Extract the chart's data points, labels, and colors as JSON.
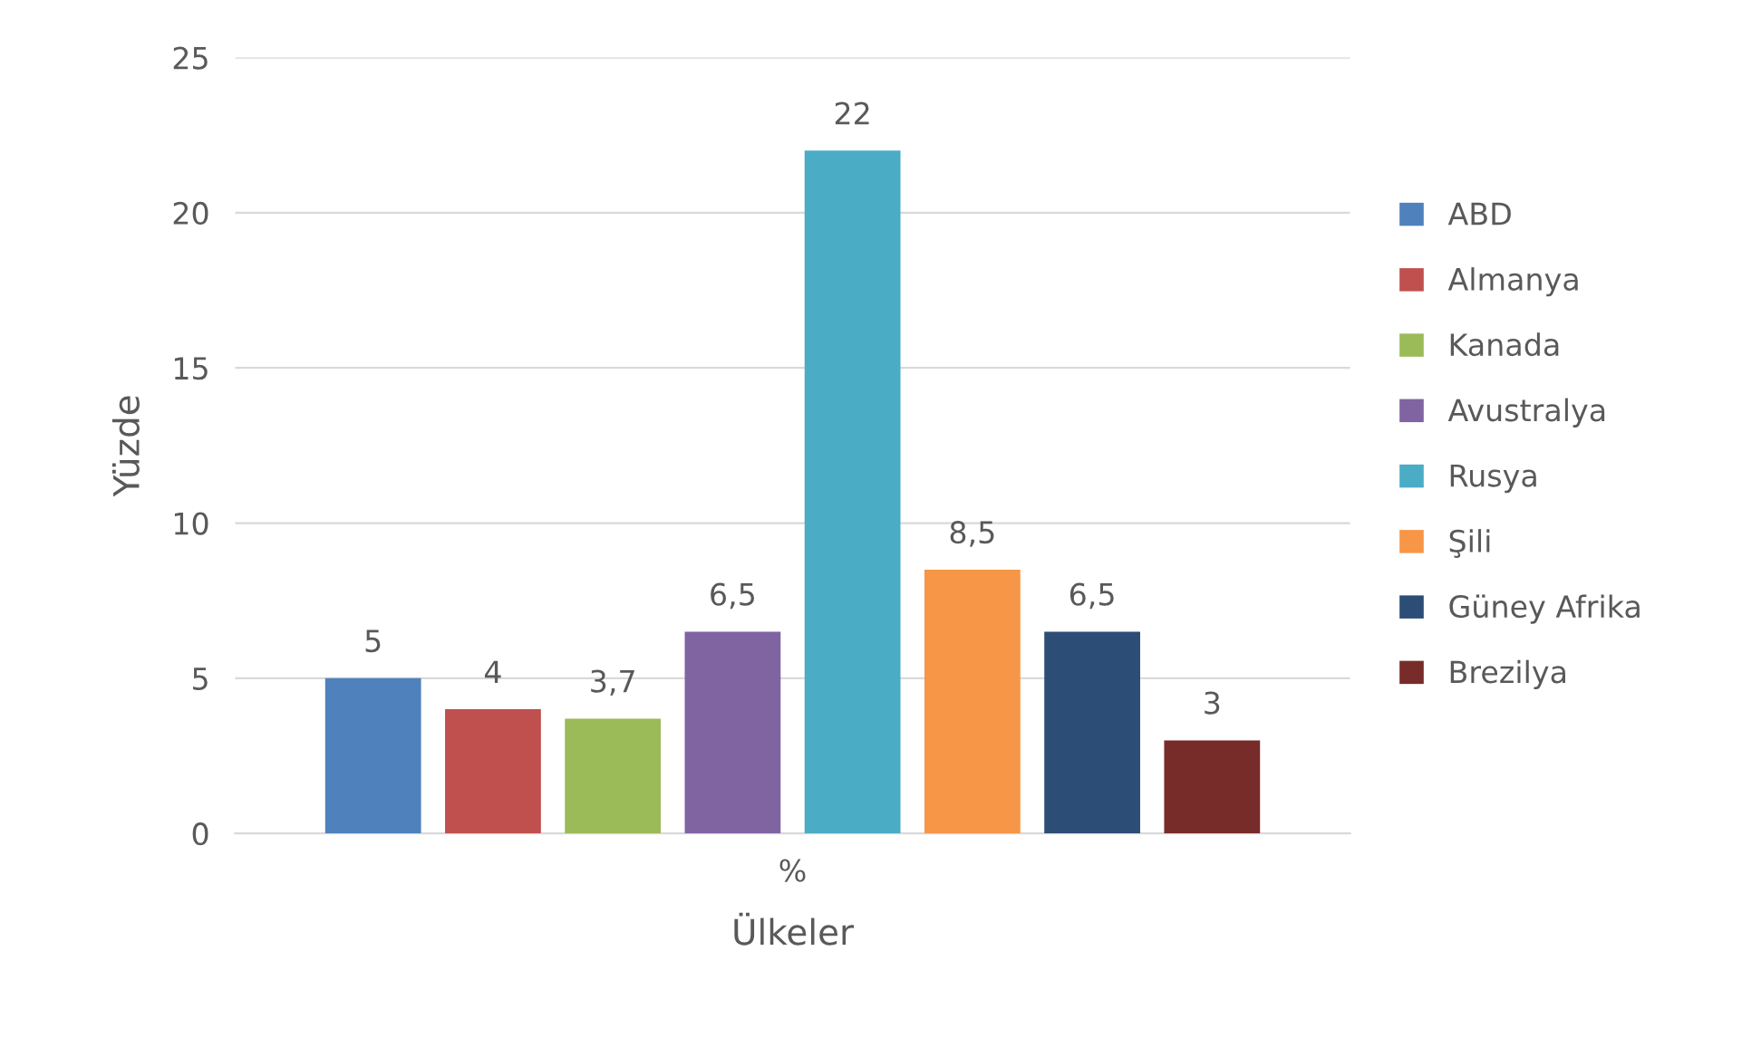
{
  "chart_data": {
    "type": "bar",
    "xlabel": "Ülkeler",
    "ylabel": "Yüzde",
    "categories": [
      "%"
    ],
    "series": [
      {
        "name": "ABD",
        "color": "#4f81bd",
        "values": [
          5
        ],
        "value_labels": [
          "5"
        ]
      },
      {
        "name": "Almanya",
        "color": "#c0504d",
        "values": [
          4
        ],
        "value_labels": [
          "4"
        ]
      },
      {
        "name": "Kanada",
        "color": "#9bbb59",
        "values": [
          3.7
        ],
        "value_labels": [
          "3,7"
        ]
      },
      {
        "name": "Avustralya",
        "color": "#8064a2",
        "values": [
          6.5
        ],
        "value_labels": [
          "6,5"
        ]
      },
      {
        "name": "Rusya",
        "color": "#4bacc6",
        "values": [
          22
        ],
        "value_labels": [
          "22"
        ]
      },
      {
        "name": "Şili",
        "color": "#f79646",
        "values": [
          8.5
        ],
        "value_labels": [
          "8,5"
        ]
      },
      {
        "name": "Güney Afrika",
        "color": "#2c4d75",
        "values": [
          6.5
        ],
        "value_labels": [
          "6,5"
        ]
      },
      {
        "name": "Brezilya",
        "color": "#772c2a",
        "values": [
          3
        ],
        "value_labels": [
          "3"
        ]
      }
    ],
    "ylim": [
      0,
      25
    ],
    "yticks": [
      0,
      5,
      10,
      15,
      20,
      25
    ],
    "grid": "y",
    "legend": "right"
  }
}
